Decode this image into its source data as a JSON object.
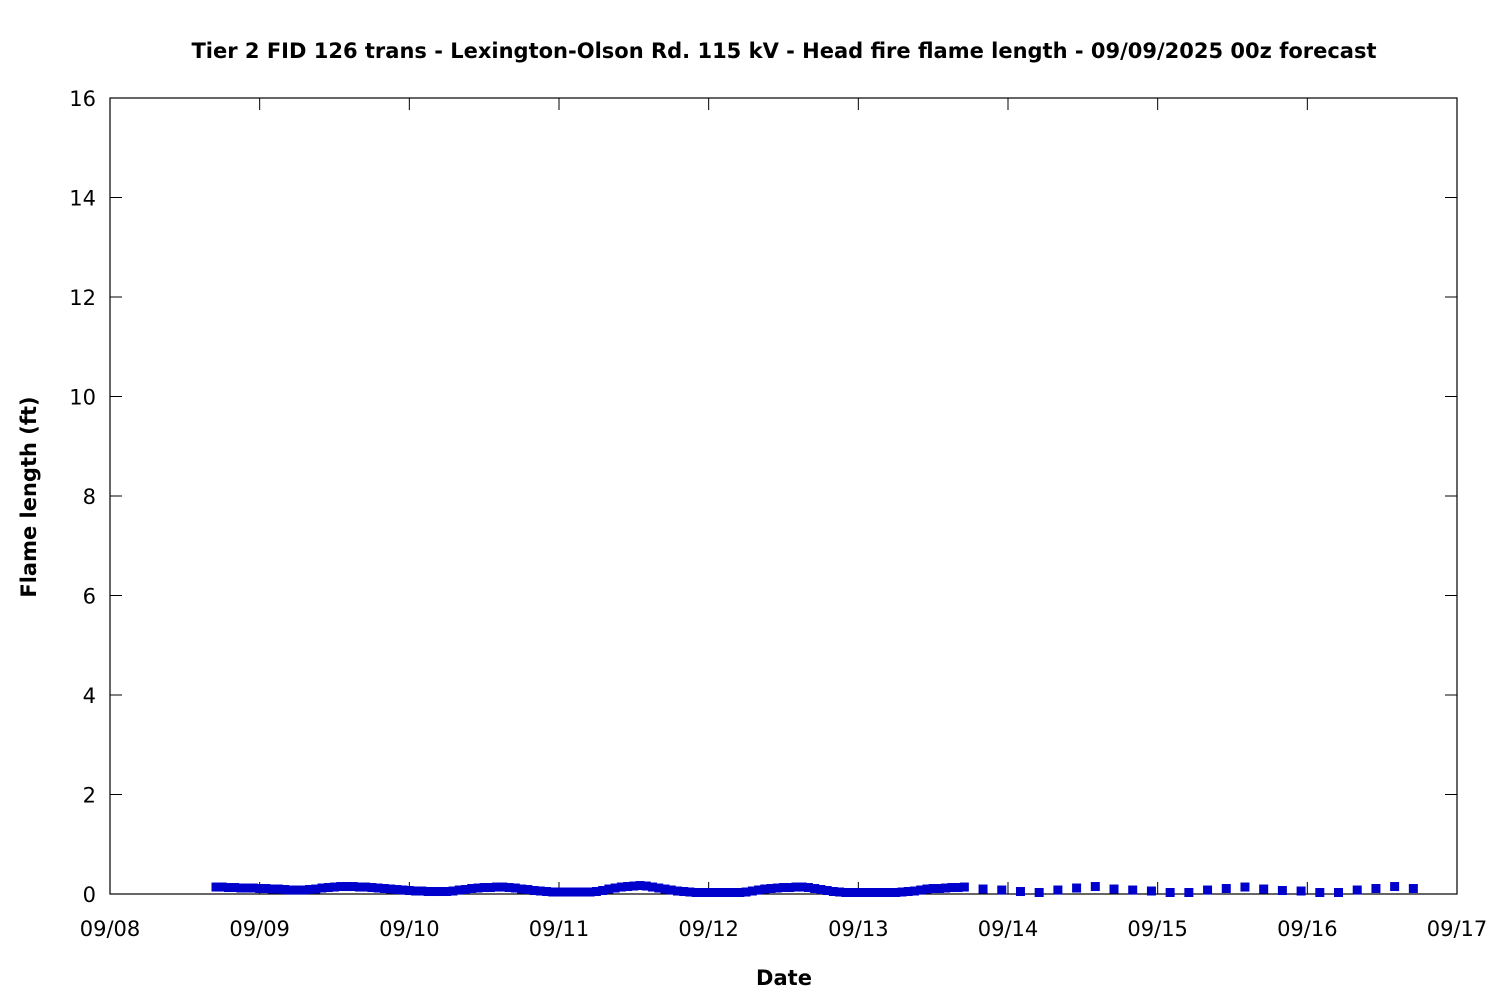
{
  "chart_data": {
    "type": "scatter",
    "title": "Tier 2 FID 126 trans - Lexington-Olson Rd. 115 kV - Head fire flame length - 09/09/2025 00z forecast",
    "xlabel": "Date",
    "ylabel": "Flame length (ft)",
    "x_ticks": [
      "09/08",
      "09/09",
      "09/10",
      "09/11",
      "09/12",
      "09/13",
      "09/14",
      "09/15",
      "09/16",
      "09/17"
    ],
    "y_ticks": [
      "0",
      "2",
      "4",
      "6",
      "8",
      "10",
      "12",
      "14",
      "16"
    ],
    "xlim": [
      "2025-09-08T00:00",
      "2025-09-17T00:00"
    ],
    "ylim": [
      0,
      16
    ],
    "grid": false,
    "legend": "none",
    "series": [
      {
        "color": "#0000cc",
        "marker": "square",
        "x": [
          "2025-09-08T17:00",
          "2025-09-08T18:00",
          "2025-09-08T19:00",
          "2025-09-08T20:00",
          "2025-09-08T21:00",
          "2025-09-08T22:00",
          "2025-09-08T23:00",
          "2025-09-09T00:00",
          "2025-09-09T01:00",
          "2025-09-09T02:00",
          "2025-09-09T03:00",
          "2025-09-09T04:00",
          "2025-09-09T05:00",
          "2025-09-09T06:00",
          "2025-09-09T07:00",
          "2025-09-09T08:00",
          "2025-09-09T09:00",
          "2025-09-09T10:00",
          "2025-09-09T11:00",
          "2025-09-09T12:00",
          "2025-09-09T13:00",
          "2025-09-09T14:00",
          "2025-09-09T15:00",
          "2025-09-09T16:00",
          "2025-09-09T17:00",
          "2025-09-09T18:00",
          "2025-09-09T19:00",
          "2025-09-09T20:00",
          "2025-09-09T21:00",
          "2025-09-09T22:00",
          "2025-09-09T23:00",
          "2025-09-10T00:00",
          "2025-09-10T01:00",
          "2025-09-10T02:00",
          "2025-09-10T03:00",
          "2025-09-10T04:00",
          "2025-09-10T05:00",
          "2025-09-10T06:00",
          "2025-09-10T07:00",
          "2025-09-10T08:00",
          "2025-09-10T09:00",
          "2025-09-10T10:00",
          "2025-09-10T11:00",
          "2025-09-10T12:00",
          "2025-09-10T13:00",
          "2025-09-10T14:00",
          "2025-09-10T15:00",
          "2025-09-10T16:00",
          "2025-09-10T17:00",
          "2025-09-10T18:00",
          "2025-09-10T19:00",
          "2025-09-10T20:00",
          "2025-09-10T21:00",
          "2025-09-10T22:00",
          "2025-09-10T23:00",
          "2025-09-11T00:00",
          "2025-09-11T01:00",
          "2025-09-11T02:00",
          "2025-09-11T03:00",
          "2025-09-11T04:00",
          "2025-09-11T05:00",
          "2025-09-11T06:00",
          "2025-09-11T07:00",
          "2025-09-11T08:00",
          "2025-09-11T09:00",
          "2025-09-11T10:00",
          "2025-09-11T11:00",
          "2025-09-11T12:00",
          "2025-09-11T13:00",
          "2025-09-11T14:00",
          "2025-09-11T15:00",
          "2025-09-11T16:00",
          "2025-09-11T17:00",
          "2025-09-11T18:00",
          "2025-09-11T19:00",
          "2025-09-11T20:00",
          "2025-09-11T21:00",
          "2025-09-11T22:00",
          "2025-09-11T23:00",
          "2025-09-12T00:00",
          "2025-09-12T01:00",
          "2025-09-12T02:00",
          "2025-09-12T03:00",
          "2025-09-12T04:00",
          "2025-09-12T05:00",
          "2025-09-12T06:00",
          "2025-09-12T07:00",
          "2025-09-12T08:00",
          "2025-09-12T09:00",
          "2025-09-12T10:00",
          "2025-09-12T11:00",
          "2025-09-12T12:00",
          "2025-09-12T13:00",
          "2025-09-12T14:00",
          "2025-09-12T15:00",
          "2025-09-12T16:00",
          "2025-09-12T17:00",
          "2025-09-12T18:00",
          "2025-09-12T19:00",
          "2025-09-12T20:00",
          "2025-09-12T21:00",
          "2025-09-12T22:00",
          "2025-09-12T23:00",
          "2025-09-13T00:00",
          "2025-09-13T01:00",
          "2025-09-13T02:00",
          "2025-09-13T03:00",
          "2025-09-13T04:00",
          "2025-09-13T05:00",
          "2025-09-13T06:00",
          "2025-09-13T07:00",
          "2025-09-13T08:00",
          "2025-09-13T09:00",
          "2025-09-13T10:00",
          "2025-09-13T11:00",
          "2025-09-13T12:00",
          "2025-09-13T13:00",
          "2025-09-13T14:00",
          "2025-09-13T15:00",
          "2025-09-13T16:00",
          "2025-09-13T17:00",
          "2025-09-13T20:00",
          "2025-09-13T23:00",
          "2025-09-14T02:00",
          "2025-09-14T05:00",
          "2025-09-14T08:00",
          "2025-09-14T11:00",
          "2025-09-14T14:00",
          "2025-09-14T17:00",
          "2025-09-14T20:00",
          "2025-09-14T23:00",
          "2025-09-15T02:00",
          "2025-09-15T05:00",
          "2025-09-15T08:00",
          "2025-09-15T11:00",
          "2025-09-15T14:00",
          "2025-09-15T17:00",
          "2025-09-15T20:00",
          "2025-09-15T23:00",
          "2025-09-16T02:00",
          "2025-09-16T05:00",
          "2025-09-16T08:00",
          "2025-09-16T11:00",
          "2025-09-16T14:00",
          "2025-09-16T17:00"
        ],
        "y": [
          0.14,
          0.14,
          0.13,
          0.13,
          0.12,
          0.12,
          0.12,
          0.11,
          0.11,
          0.1,
          0.1,
          0.09,
          0.08,
          0.08,
          0.08,
          0.09,
          0.1,
          0.12,
          0.13,
          0.14,
          0.15,
          0.15,
          0.15,
          0.14,
          0.14,
          0.13,
          0.12,
          0.11,
          0.1,
          0.09,
          0.08,
          0.07,
          0.06,
          0.06,
          0.05,
          0.05,
          0.05,
          0.05,
          0.06,
          0.08,
          0.09,
          0.11,
          0.12,
          0.13,
          0.13,
          0.14,
          0.14,
          0.13,
          0.12,
          0.1,
          0.09,
          0.07,
          0.06,
          0.05,
          0.04,
          0.04,
          0.04,
          0.04,
          0.04,
          0.04,
          0.04,
          0.05,
          0.07,
          0.1,
          0.12,
          0.14,
          0.15,
          0.16,
          0.17,
          0.16,
          0.14,
          0.12,
          0.1,
          0.08,
          0.06,
          0.05,
          0.04,
          0.03,
          0.03,
          0.03,
          0.03,
          0.03,
          0.03,
          0.03,
          0.03,
          0.04,
          0.06,
          0.08,
          0.1,
          0.11,
          0.12,
          0.13,
          0.13,
          0.14,
          0.14,
          0.13,
          0.11,
          0.09,
          0.07,
          0.05,
          0.04,
          0.03,
          0.03,
          0.03,
          0.03,
          0.03,
          0.03,
          0.03,
          0.03,
          0.03,
          0.04,
          0.05,
          0.06,
          0.08,
          0.1,
          0.11,
          0.11,
          0.12,
          0.13,
          0.13,
          0.14,
          0.1,
          0.08,
          0.05,
          0.03,
          0.08,
          0.12,
          0.15,
          0.1,
          0.08,
          0.06,
          0.03,
          0.03,
          0.08,
          0.11,
          0.14,
          0.1,
          0.07,
          0.06,
          0.03,
          0.03,
          0.08,
          0.11,
          0.15,
          0.11
        ]
      }
    ]
  }
}
